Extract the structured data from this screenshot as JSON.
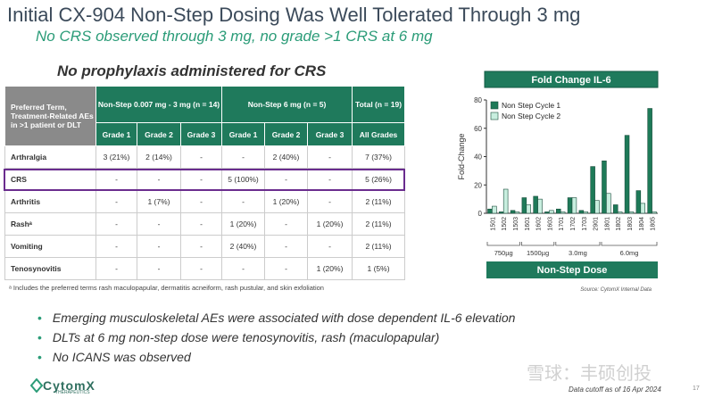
{
  "header": {
    "title": "Initial CX-904 Non-Step Dosing Was Well Tolerated Through 3 mg",
    "subtitle": "No CRS observed through 3 mg, no grade >1 CRS at 6 mg"
  },
  "table_heading": "No prophylaxis administered for CRS",
  "table": {
    "corner": "Preferred Term, Treatment-Related AEs in >1 patient or DLT",
    "groups": [
      "Non-Step 0.007 mg - 3 mg (n = 14)",
      "Non-Step 6 mg (n = 5)",
      "Total (n = 19)"
    ],
    "subheaders": [
      "Grade 1",
      "Grade 2",
      "Grade 3",
      "Grade 1",
      "Grade 2",
      "Grade 3",
      "All Grades"
    ],
    "rows": [
      [
        "Arthralgia",
        "3 (21%)",
        "2 (14%)",
        "-",
        "-",
        "2 (40%)",
        "-",
        "7 (37%)"
      ],
      [
        "CRS",
        "-",
        "-",
        "-",
        "5 (100%)",
        "-",
        "-",
        "5 (26%)"
      ],
      [
        "Arthritis",
        "-",
        "1 (7%)",
        "-",
        "-",
        "1 (20%)",
        "-",
        "2 (11%)"
      ],
      [
        "Rashᵃ",
        "-",
        "-",
        "-",
        "1 (20%)",
        "-",
        "1 (20%)",
        "2 (11%)"
      ],
      [
        "Vomiting",
        "-",
        "-",
        "-",
        "2 (40%)",
        "-",
        "-",
        "2 (11%)"
      ],
      [
        "Tenosynovitis",
        "-",
        "-",
        "-",
        "-",
        "-",
        "1 (20%)",
        "1 (5%)"
      ]
    ],
    "highlight_row": "CRS"
  },
  "footnote": "ᵃ Includes the preferred terms rash maculopapular, dermatitis acneiform, rash pustular, and skin exfoliation",
  "chart_data": {
    "type": "bar",
    "title": "Fold Change IL-6",
    "y_label": "Fold-Change",
    "x_label": "Non-Step Dose",
    "source": "Source: CytomX Internal Data",
    "categories": [
      "1501",
      "1502",
      "1503",
      "1601",
      "1602",
      "1603",
      "1701",
      "1702",
      "1703",
      "2901",
      "1801",
      "1802",
      "1803",
      "1804",
      "1805"
    ],
    "dose_groups": [
      {
        "label": "750µg",
        "categories": [
          "1501",
          "1502",
          "1503"
        ]
      },
      {
        "label": "1500µg",
        "categories": [
          "1601",
          "1602",
          "1603"
        ]
      },
      {
        "label": "3.0mg",
        "categories": [
          "1701",
          "1702",
          "1703",
          "2901"
        ]
      },
      {
        "label": "6.0mg",
        "categories": [
          "1801",
          "1802",
          "1803",
          "1804",
          "1805"
        ]
      }
    ],
    "series": [
      {
        "name": "Non Step Cycle 1",
        "color": "#1e7a58",
        "values": [
          3,
          1,
          2,
          11,
          12,
          1,
          3,
          11,
          2,
          33,
          37,
          6,
          55,
          16,
          74
        ]
      },
      {
        "name": "Non Step Cycle 2",
        "color": "#c8eedf",
        "values": [
          5,
          17,
          1,
          6,
          10,
          2,
          1,
          11,
          1,
          9,
          14,
          1,
          1,
          7,
          1
        ]
      }
    ],
    "ylim": [
      0,
      80
    ],
    "yticks": [
      0,
      20,
      40,
      60,
      80
    ],
    "legend": "upper-left"
  },
  "bullets": [
    "Emerging musculoskeletal AEs were associated with dose dependent IL-6 elevation",
    "DLTs at 6 mg non-step dose were tenosynovitis, rash (maculopapular)",
    "No ICANS was observed"
  ],
  "footer": {
    "logo": "CytomX",
    "logo_sub": "THERAPEUTICS",
    "cutoff": "Data cutoff as of 16 Apr 2024",
    "page": "17",
    "watermark": "雪球：丰硕创投"
  }
}
